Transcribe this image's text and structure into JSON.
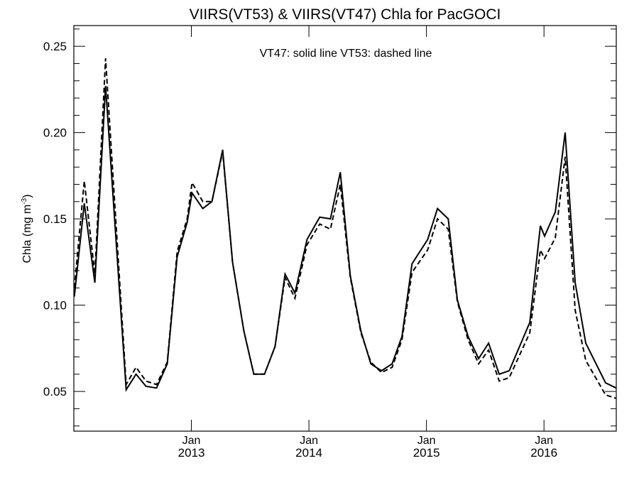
{
  "chart_data": {
    "type": "line",
    "title": "VIIRS(VT53) & VIIRS(VT47)  Chla for PacGOCI",
    "annotation": "VT47: solid line   VT53: dashed line",
    "xlabel": "",
    "ylabel": "Chla (mg m",
    "ylabel_sup": "-3",
    "ylabel_close": ")",
    "xlim": [
      2012.0,
      2016.615
    ],
    "ylim": [
      0.027,
      0.262
    ],
    "yticks": [
      0.05,
      0.1,
      0.15,
      0.2,
      0.25
    ],
    "ytick_labels": [
      "0.05",
      "0.10",
      "0.15",
      "0.20",
      "0.25"
    ],
    "xticks": [
      {
        "value": 2013.0,
        "month": "Jan",
        "year": "2013"
      },
      {
        "value": 2014.0,
        "month": "Jan",
        "year": "2014"
      },
      {
        "value": 2015.0,
        "month": "Jan",
        "year": "2015"
      },
      {
        "value": 2016.0,
        "month": "Jan",
        "year": "2016"
      }
    ],
    "grid": false,
    "x": [
      2012.004,
      2012.089,
      2012.179,
      2012.27,
      2012.445,
      2012.529,
      2012.614,
      2012.704,
      2012.795,
      2012.879,
      2012.964,
      2013.006,
      2013.097,
      2013.175,
      2013.266,
      2013.35,
      2013.447,
      2013.531,
      2013.622,
      2013.712,
      2013.797,
      2013.881,
      2013.984,
      2014.092,
      2014.183,
      2014.267,
      2014.352,
      2014.442,
      2014.527,
      2014.617,
      2014.708,
      2014.792,
      2014.877,
      2015.01,
      2015.094,
      2015.185,
      2015.263,
      2015.354,
      2015.444,
      2015.529,
      2015.619,
      2015.704,
      2015.879,
      2015.969,
      2016.005,
      2016.096,
      2016.18,
      2016.265,
      2016.355,
      2016.524,
      2016.615
    ],
    "series": [
      {
        "name": "VT47",
        "style": "solid",
        "color": "#000000",
        "values": [
          0.105,
          0.159,
          0.113,
          0.227,
          0.051,
          0.06,
          0.053,
          0.052,
          0.066,
          0.128,
          0.148,
          0.165,
          0.156,
          0.16,
          0.19,
          0.125,
          0.085,
          0.06,
          0.06,
          0.076,
          0.118,
          0.107,
          0.138,
          0.151,
          0.15,
          0.177,
          0.117,
          0.085,
          0.066,
          0.062,
          0.066,
          0.082,
          0.124,
          0.138,
          0.156,
          0.15,
          0.103,
          0.082,
          0.069,
          0.078,
          0.06,
          0.062,
          0.09,
          0.146,
          0.14,
          0.154,
          0.2,
          0.113,
          0.078,
          0.055,
          0.052
        ]
      },
      {
        "name": "VT53",
        "style": "dashed",
        "color": "#000000",
        "values": [
          0.11,
          0.172,
          0.118,
          0.243,
          0.054,
          0.064,
          0.056,
          0.054,
          0.067,
          0.131,
          0.15,
          0.171,
          0.16,
          0.16,
          0.189,
          0.125,
          0.085,
          0.06,
          0.06,
          0.076,
          0.116,
          0.104,
          0.135,
          0.147,
          0.144,
          0.17,
          0.116,
          0.084,
          0.067,
          0.061,
          0.064,
          0.08,
          0.119,
          0.132,
          0.15,
          0.144,
          0.102,
          0.08,
          0.066,
          0.074,
          0.056,
          0.058,
          0.084,
          0.132,
          0.127,
          0.139,
          0.186,
          0.097,
          0.068,
          0.048,
          0.046
        ]
      }
    ]
  }
}
